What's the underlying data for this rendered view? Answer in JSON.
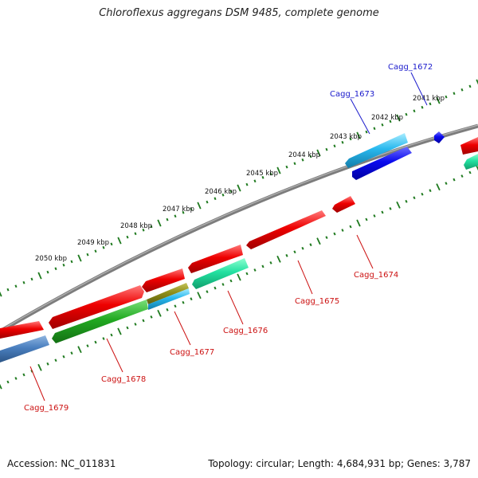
{
  "title": "Chloroflexus aggregans DSM 9485, complete genome",
  "footer": {
    "accession": "Accession: NC_011831",
    "topology": "Topology: circular; Length: 4,684,931 bp; Genes: 3,787"
  },
  "colors": {
    "backbone": "#808080",
    "ruler": "#1f7a1f",
    "label_forward": "#1a1acc",
    "label_reverse": "#cc1111"
  },
  "ruler_ticks": [
    {
      "label": "2041 kbp",
      "kbp": 2041
    },
    {
      "label": "2042 kbp",
      "kbp": 2042
    },
    {
      "label": "2043 kbp",
      "kbp": 2043
    },
    {
      "label": "2044 kbp",
      "kbp": 2044
    },
    {
      "label": "2045 kbp",
      "kbp": 2045
    },
    {
      "label": "2046 kbp",
      "kbp": 2046
    },
    {
      "label": "2047 kbp",
      "kbp": 2047
    },
    {
      "label": "2048 kbp",
      "kbp": 2048
    },
    {
      "label": "2049 kbp",
      "kbp": 2049
    },
    {
      "label": "2050 kbp",
      "kbp": 2050
    }
  ],
  "gene_labels": [
    {
      "name": "Cagg_1672",
      "strand": "forward"
    },
    {
      "name": "Cagg_1673",
      "strand": "forward"
    },
    {
      "name": "Cagg_1674",
      "strand": "reverse"
    },
    {
      "name": "Cagg_1675",
      "strand": "reverse"
    },
    {
      "name": "Cagg_1676",
      "strand": "reverse"
    },
    {
      "name": "Cagg_1677",
      "strand": "reverse"
    },
    {
      "name": "Cagg_1678",
      "strand": "reverse"
    },
    {
      "name": "Cagg_1679",
      "strand": "reverse"
    }
  ]
}
